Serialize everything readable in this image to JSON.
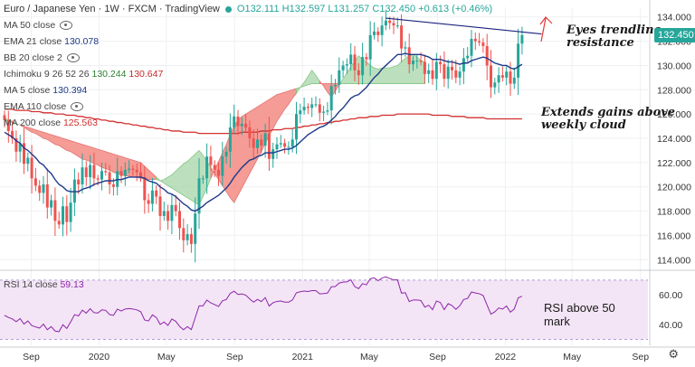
{
  "header": {
    "symbol": "Euro / Japanese Yen",
    "interval": "1W",
    "source": "FXCM",
    "platform": "TradingView",
    "open": "O132.111",
    "high": "H132.597",
    "low": "L131.257",
    "close": "C132.450",
    "change": "+0.613 (+0.46%)"
  },
  "indicators": [
    {
      "label": "MA 50 close",
      "value": ""
    },
    {
      "label": "EMA 21 close",
      "value": "130.078"
    },
    {
      "label": "BB 20 close 2",
      "value": ""
    },
    {
      "label": "Ichimoku 9 26 52 26",
      "value": "130.244",
      "value2": "130.647"
    },
    {
      "label": "MA 5 close",
      "value": "130.394"
    },
    {
      "label": "EMA 110 close",
      "value": ""
    },
    {
      "label": "MA 200 close",
      "value": "125.563"
    }
  ],
  "annotations": {
    "trendline": "Eyes trendline\nresistance",
    "cloud": "Extends gains above\nweekly cloud",
    "rsi": "RSI above 50\nmark"
  },
  "price_tag": "132.450",
  "rsi_legend": "RSI 14 close",
  "rsi_value": "59.13",
  "colors": {
    "bull": "#26a69a",
    "bear": "#ef5350",
    "ema21": "#1e3a8a",
    "ma200": "#d32f2f",
    "cloud_bull": "#a5d6a7",
    "cloud_bear": "#f28b82",
    "rsi": "#8e24aa",
    "rsi_band": "#f3e5f5"
  },
  "chart_data": [
    {
      "type": "candlestick",
      "title": "Euro / Japanese Yen",
      "x_tick_labels": [
        "Sep",
        "2020",
        "May",
        "Sep",
        "2021",
        "May",
        "Sep",
        "2022",
        "May",
        "Sep"
      ],
      "x_tick_dates": [
        "2019-09-01",
        "2020-01-01",
        "2020-05-01",
        "2020-09-01",
        "2021-01-01",
        "2021-05-01",
        "2021-09-01",
        "2022-01-01",
        "2022-05-01",
        "2022-09-01"
      ],
      "y_ticks": [
        114,
        116,
        118,
        120,
        122,
        124,
        126,
        128,
        130,
        132,
        134
      ],
      "ylim": [
        113.2,
        134.8
      ],
      "close": [
        125.5,
        124.6,
        124.0,
        122.9,
        123.6,
        121.9,
        122.4,
        120.7,
        120.1,
        119.5,
        120.2,
        118.3,
        118.9,
        117.2,
        116.9,
        118.4,
        117.1,
        118.7,
        120.6,
        120.2,
        121.6,
        120.8,
        121.8,
        120.7,
        120.6,
        121.3,
        121.2,
        120.2,
        120.0,
        121.3,
        120.9,
        121.4,
        121.5,
        121.4,
        121.2,
        120.8,
        118.9,
        118.6,
        119.7,
        119.2,
        117.6,
        118.0,
        117.2,
        118.5,
        118.0,
        116.6,
        115.6,
        116.1,
        115.3,
        117.8,
        120.7,
        120.7,
        122.5,
        121.8,
        121.4,
        120.9,
        122.5,
        122.9,
        124.9,
        125.8,
        125.0,
        125.2,
        124.9,
        124.0,
        123.2,
        123.9,
        123.4,
        124.4,
        122.3,
        123.1,
        123.5,
        123.6,
        123.3,
        123.3,
        123.9,
        126.0,
        126.3,
        126.6,
        126.5,
        126.8,
        126.8,
        126.1,
        126.2,
        126.3,
        128.3,
        128.4,
        129.6,
        130.0,
        130.1,
        130.9,
        129.6,
        129.2,
        130.7,
        130.5,
        132.5,
        132.8,
        132.5,
        133.3,
        133.7,
        133.5,
        133.3,
        133.3,
        131.4,
        131.5,
        130.1,
        130.4,
        130.4,
        130.3,
        129.3,
        129.6,
        128.9,
        130.3,
        130.1,
        128.9,
        129.9,
        129.6,
        129.0,
        129.5,
        130.6,
        130.8,
        132.2,
        132.0,
        131.9,
        131.6,
        130.0,
        128.2,
        128.6,
        129.2,
        129.0,
        129.5,
        128.5,
        129.0,
        131.8,
        132.5
      ],
      "ema21": [
        124.5,
        124.3,
        124.1,
        123.8,
        123.6,
        123.2,
        123.0,
        122.7,
        122.4,
        122.0,
        121.8,
        121.4,
        121.1,
        120.6,
        120.2,
        120.0,
        119.7,
        119.6,
        119.6,
        119.6,
        119.8,
        119.9,
        120.0,
        120.2,
        120.3,
        120.4,
        120.5,
        120.5,
        120.5,
        120.6,
        120.6,
        120.7,
        120.8,
        120.8,
        120.8,
        120.8,
        120.7,
        120.5,
        120.4,
        120.3,
        120.0,
        119.8,
        119.5,
        119.4,
        119.2,
        118.9,
        118.6,
        118.4,
        118.1,
        118.0,
        118.2,
        118.4,
        118.7,
        118.9,
        119.1,
        119.3,
        119.6,
        119.9,
        120.3,
        120.8,
        121.2,
        121.6,
        121.9,
        122.2,
        122.3,
        122.5,
        122.6,
        122.8,
        122.8,
        122.8,
        122.9,
        123.0,
        123.1,
        123.1,
        123.2,
        123.4,
        123.7,
        124.0,
        124.3,
        124.5,
        124.7,
        124.9,
        125.0,
        125.2,
        125.5,
        125.8,
        126.2,
        126.5,
        126.9,
        127.3,
        127.5,
        127.6,
        127.9,
        128.2,
        128.6,
        129.0,
        129.3,
        129.7,
        130.0,
        130.3,
        130.6,
        130.9,
        130.9,
        131.0,
        130.9,
        130.9,
        130.9,
        130.9,
        130.8,
        130.7,
        130.5,
        130.5,
        130.5,
        130.4,
        130.3,
        130.3,
        130.2,
        130.1,
        130.2,
        130.2,
        130.4,
        130.5,
        130.6,
        130.7,
        130.6,
        130.4,
        130.2,
        130.1,
        130.0,
        130.0,
        129.8,
        129.7,
        129.9,
        130.1
      ],
      "ma200": [
        126.4,
        126.4,
        126.4,
        126.3,
        126.3,
        126.3,
        126.3,
        126.2,
        126.2,
        126.2,
        126.1,
        126.1,
        126.1,
        126.0,
        126.0,
        126.0,
        125.9,
        125.9,
        125.9,
        125.8,
        125.8,
        125.7,
        125.7,
        125.6,
        125.6,
        125.5,
        125.5,
        125.4,
        125.4,
        125.3,
        125.3,
        125.2,
        125.2,
        125.1,
        125.1,
        125.0,
        125.0,
        124.9,
        124.9,
        124.8,
        124.8,
        124.7,
        124.7,
        124.6,
        124.6,
        124.6,
        124.5,
        124.5,
        124.5,
        124.5,
        124.4,
        124.4,
        124.4,
        124.4,
        124.4,
        124.4,
        124.4,
        124.4,
        124.4,
        124.4,
        124.4,
        124.5,
        124.5,
        124.5,
        124.5,
        124.5,
        124.6,
        124.6,
        124.6,
        124.7,
        124.7,
        124.7,
        124.8,
        124.8,
        124.8,
        124.9,
        124.9,
        125.0,
        125.0,
        125.1,
        125.1,
        125.2,
        125.2,
        125.3,
        125.3,
        125.4,
        125.4,
        125.5,
        125.5,
        125.6,
        125.6,
        125.7,
        125.7,
        125.7,
        125.8,
        125.8,
        125.8,
        125.9,
        125.9,
        125.9,
        125.9,
        126.0,
        126.0,
        126.0,
        126.0,
        126.0,
        126.0,
        126.0,
        126.0,
        126.0,
        125.9,
        125.9,
        125.9,
        125.9,
        125.9,
        125.8,
        125.8,
        125.8,
        125.8,
        125.7,
        125.7,
        125.7,
        125.7,
        125.7,
        125.6,
        125.6,
        125.6,
        125.6,
        125.6,
        125.6,
        125.6,
        125.6,
        125.6,
        125.6
      ],
      "span_a": [
        125.7,
        125.5,
        125.4,
        125.2,
        125.1,
        124.9,
        124.7,
        124.5,
        124.4,
        124.2,
        124.0,
        123.9,
        123.7,
        123.5,
        123.4,
        123.2,
        123.0,
        122.9,
        122.7,
        122.5,
        122.3,
        122.2,
        122.1,
        121.9,
        121.8,
        121.6,
        121.5,
        121.4,
        121.2,
        121.1,
        121.0,
        120.9,
        120.9,
        120.8,
        120.8,
        120.7,
        120.7,
        120.6,
        120.6,
        120.6,
        120.5,
        120.6,
        120.8,
        121.0,
        121.3,
        121.6,
        121.9,
        122.1,
        122.4,
        122.7,
        123.0,
        122.6,
        122.1,
        121.6,
        121.1,
        120.6,
        120.1,
        119.6,
        119.1,
        118.7,
        119.3,
        119.9,
        120.5,
        121.1,
        121.7,
        122.3,
        122.9,
        123.6,
        124.2,
        124.8,
        125.4,
        125.9,
        126.4,
        126.8,
        127.3,
        127.7,
        128.2,
        128.6,
        129.1,
        129.6,
        129.2,
        128.7,
        128.3,
        127.8,
        127.4,
        127.9,
        128.4,
        128.9,
        129.4,
        129.9,
        130.3,
        130.8,
        130.5,
        130.3,
        130.0,
        129.8,
        129.7,
        129.8,
        129.8,
        129.8,
        129.9,
        130.0,
        130.3,
        130.6,
        130.8,
        130.9,
        130.7,
        130.4,
        130.3
      ],
      "span_b": [
        125.5,
        125.4,
        125.3,
        125.2,
        125.1,
        125.0,
        124.9,
        124.8,
        124.7,
        124.6,
        124.5,
        124.4,
        124.3,
        124.2,
        124.1,
        124.0,
        123.9,
        123.8,
        123.7,
        123.6,
        123.5,
        123.4,
        123.3,
        123.2,
        123.1,
        123.0,
        122.9,
        122.8,
        122.7,
        122.6,
        122.5,
        122.4,
        122.3,
        122.2,
        122.1,
        122.0,
        121.7,
        121.4,
        121.1,
        120.8,
        120.5,
        120.3,
        120.1,
        119.9,
        119.7,
        119.5,
        119.3,
        119.1,
        118.9,
        118.7,
        118.5,
        119.2,
        119.9,
        120.7,
        121.4,
        122.1,
        122.8,
        123.5,
        124.3,
        125.0,
        125.5,
        125.8,
        126.0,
        126.2,
        126.4,
        126.6,
        126.8,
        127.0,
        127.2,
        127.4,
        127.6,
        127.7,
        127.8,
        127.9,
        128.0,
        128.1,
        128.2,
        128.3,
        128.4,
        128.5,
        128.5,
        128.5,
        128.5,
        128.5,
        128.5,
        128.5,
        128.5,
        128.5,
        128.5,
        128.5,
        128.5,
        128.5,
        128.5,
        128.5,
        128.5,
        128.5,
        128.5,
        128.5,
        128.5,
        128.5,
        128.5,
        128.5,
        128.5,
        128.5,
        128.5,
        128.5,
        128.5,
        128.5,
        128.5
      ],
      "trendline": [
        {
          "date": "2021-05-31",
          "y": 133.9
        },
        {
          "date": "2022-03-07",
          "y": 132.6
        }
      ]
    },
    {
      "type": "line",
      "title": "RSI 14 close",
      "ylim": [
        26,
        76
      ],
      "y_ticks": [
        40,
        60
      ],
      "band": [
        30,
        70
      ],
      "values": [
        46.2,
        44.8,
        43.8,
        41.9,
        44.0,
        40.3,
        42.4,
        39.3,
        38.4,
        37.6,
        40.3,
        36.5,
        38.6,
        35.6,
        35.2,
        39.9,
        37.4,
        41.8,
        46.7,
        45.8,
        49.7,
        47.7,
        50.7,
        48.0,
        47.8,
        49.9,
        49.6,
        46.7,
        46.2,
        50.4,
        49.1,
        50.5,
        50.8,
        50.5,
        49.9,
        48.7,
        43.1,
        42.4,
        46.5,
        44.8,
        40.1,
        41.7,
        39.4,
        43.7,
        42.2,
        38.7,
        36.5,
        38.6,
        36.6,
        44.6,
        52.6,
        52.6,
        56.5,
        54.6,
        53.5,
        52.2,
        56.0,
        56.9,
        61.0,
        62.5,
        60.3,
        60.7,
        59.8,
        57.3,
        55.1,
        57.0,
        55.5,
        58.2,
        52.5,
        54.7,
        55.6,
        55.9,
        55.1,
        55.1,
        56.6,
        61.4,
        62.1,
        62.6,
        62.3,
        62.9,
        62.9,
        60.7,
        60.9,
        61.2,
        65.5,
        65.6,
        68.0,
        68.6,
        68.8,
        70.2,
        65.6,
        64.2,
        67.6,
        66.8,
        70.9,
        71.5,
        69.6,
        71.4,
        72.2,
        71.1,
        70.1,
        70.1,
        61.2,
        61.5,
        55.5,
        56.6,
        56.6,
        56.2,
        51.8,
        53.0,
        50.0,
        55.9,
        54.9,
        50.1,
        54.1,
        52.8,
        50.3,
        52.7,
        56.9,
        57.6,
        62.0,
        61.3,
        60.8,
        59.6,
        53.2,
        47.0,
        48.6,
        51.2,
        50.4,
        52.5,
        48.3,
        50.5,
        58.0,
        59.1
      ]
    }
  ]
}
